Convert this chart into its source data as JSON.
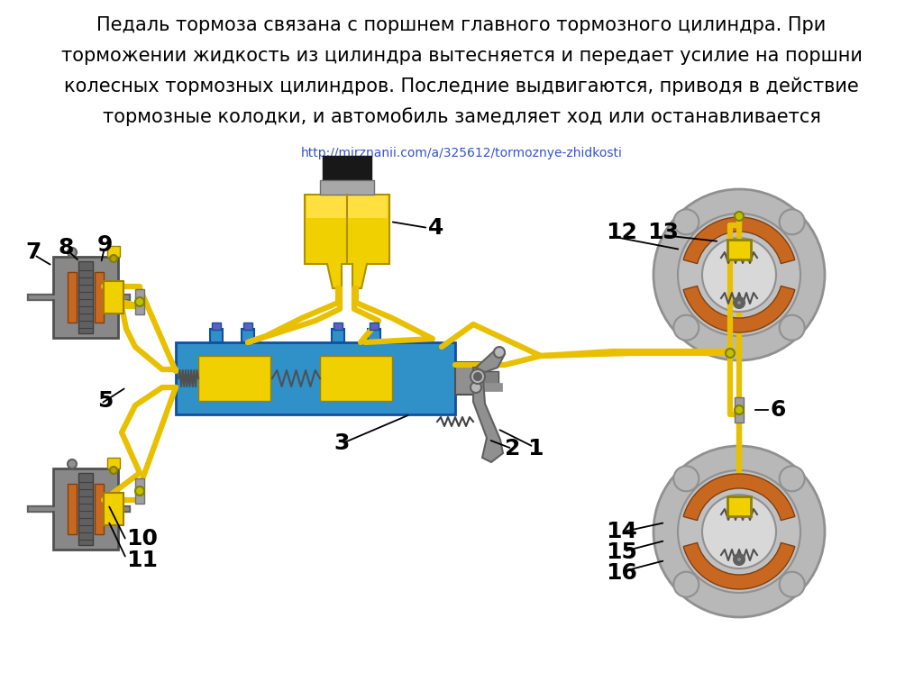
{
  "bg_color": "#ffffff",
  "title_lines": [
    "Педаль тормоза связана с поршнем главного тормозного цилиндра. При",
    "торможении жидкость из цилиндра вытесняется и передает усилие на поршни",
    "колесных тормозных цилиндров. Последние выдвигаются, приводя в действие",
    "тормозные колодки, и автомобиль замедляет ход или останавливается"
  ],
  "url_text": "http://mirznanii.com/a/325612/tormoznye-zhidkosti",
  "pipe_color": "#e8c000",
  "pipe_lw": 4.5,
  "yellow": "#f0d000",
  "blue": "#3090c8",
  "gray_light": "#b8b8b8",
  "gray_mid": "#909090",
  "gray_dark": "#606060",
  "orange_brake": "#c86820",
  "black": "#181818"
}
